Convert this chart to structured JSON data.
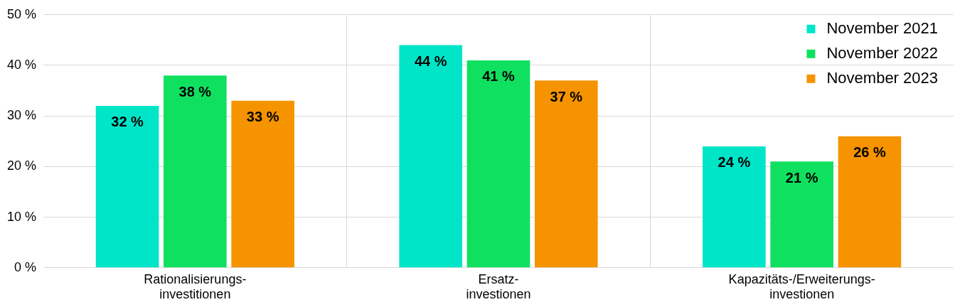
{
  "chart_data": {
    "type": "bar",
    "categories": [
      "Rationalisierungs-\ninvestitionen",
      "Ersatz-\ninvestionen",
      "Kapazitäts-/Erweiterungs-\ninvestionen"
    ],
    "series": [
      {
        "name": "November 2021",
        "color": "#00e5c8",
        "values": [
          32,
          44,
          24
        ],
        "value_labels": [
          "32 %",
          "44 %",
          "24 %"
        ]
      },
      {
        "name": "November 2022",
        "color": "#10e060",
        "values": [
          38,
          41,
          21
        ],
        "value_labels": [
          "38 %",
          "41 %",
          "21 %"
        ]
      },
      {
        "name": "November 2023",
        "color": "#f59300",
        "values": [
          33,
          37,
          26
        ],
        "value_labels": [
          "33 %",
          "37 %",
          "26 %"
        ]
      }
    ],
    "ylim": [
      0,
      50
    ],
    "yticks": [
      {
        "value": 0,
        "label": "0 %"
      },
      {
        "value": 10,
        "label": "10 %"
      },
      {
        "value": 20,
        "label": "20 %"
      },
      {
        "value": 30,
        "label": "30 %"
      },
      {
        "value": 40,
        "label": "40 %"
      },
      {
        "value": 50,
        "label": "50 %"
      }
    ],
    "grid": true,
    "legend": "top right"
  }
}
